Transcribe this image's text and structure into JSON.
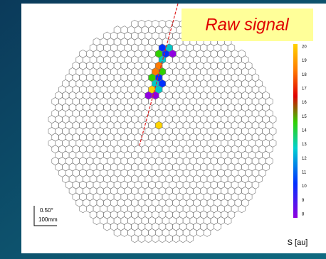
{
  "title": "Raw signal",
  "colorbar": {
    "ticks": [
      "20",
      "19",
      "18",
      "17",
      "16",
      "15",
      "14",
      "13",
      "12",
      "11",
      "10",
      "9",
      "8"
    ],
    "unit": "S [au]"
  },
  "scale_bar": {
    "angle": "0.50°",
    "length": "100mm"
  }
}
